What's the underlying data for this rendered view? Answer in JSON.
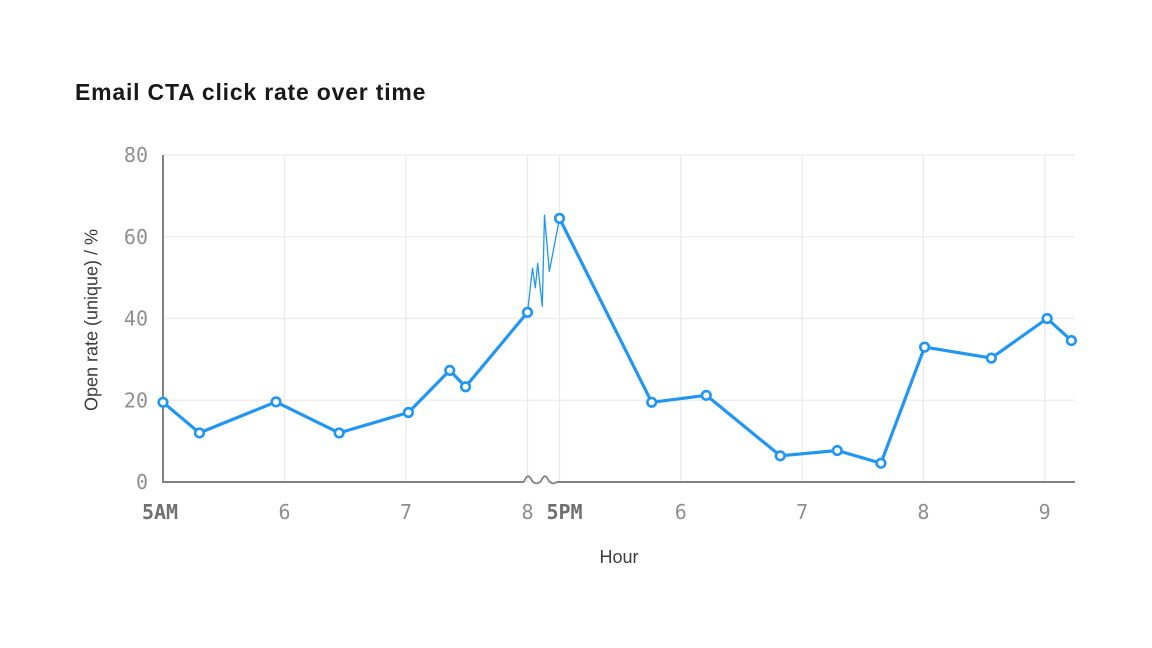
{
  "chart_data": {
    "type": "line",
    "title": "Email CTA click rate over time",
    "xlabel": "Hour",
    "ylabel": "Open rate (unique) / %",
    "ylim": [
      0,
      80
    ],
    "yticks": [
      0,
      20,
      40,
      60,
      80
    ],
    "grid": true,
    "legend": "none",
    "x_axis_break_between": [
      "8AM",
      "5PM"
    ],
    "x_ticks_am": [
      {
        "hour": 5,
        "label": "5AM",
        "bold": true
      },
      {
        "hour": 6,
        "label": "6",
        "bold": false
      },
      {
        "hour": 7,
        "label": "7",
        "bold": false
      },
      {
        "hour": 8,
        "label": "8",
        "bold": false
      }
    ],
    "x_ticks_pm": [
      {
        "hour": 17,
        "label": "5PM",
        "bold": true
      },
      {
        "hour": 18,
        "label": "6",
        "bold": false
      },
      {
        "hour": 19,
        "label": "7",
        "bold": false
      },
      {
        "hour": 20,
        "label": "8",
        "bold": false
      },
      {
        "hour": 21,
        "label": "9",
        "bold": false
      }
    ],
    "series": [
      {
        "name": "Open rate (unique) / %",
        "am_points": [
          [
            5.0,
            19.5
          ],
          [
            5.3,
            12.0
          ],
          [
            5.93,
            19.6
          ],
          [
            6.45,
            12.0
          ],
          [
            7.02,
            17.0
          ],
          [
            7.36,
            27.3
          ],
          [
            7.49,
            23.3
          ],
          [
            8.0,
            41.5
          ]
        ],
        "break_points": [
          [
            0.156,
            52.3
          ],
          [
            0.244,
            47.5
          ],
          [
            0.319,
            53.5
          ],
          [
            0.391,
            48.0
          ],
          [
            0.463,
            43.0
          ],
          [
            0.531,
            65.3
          ],
          [
            0.681,
            51.5
          ]
        ],
        "pm_points": [
          [
            17.0,
            64.5
          ],
          [
            17.76,
            19.5
          ],
          [
            18.21,
            21.2
          ],
          [
            18.82,
            6.4
          ],
          [
            19.29,
            7.7
          ],
          [
            19.65,
            4.6
          ],
          [
            20.01,
            33.0
          ],
          [
            20.56,
            30.3
          ],
          [
            21.02,
            40.0
          ],
          [
            21.22,
            34.6
          ]
        ]
      }
    ],
    "colors": {
      "line": "#2196F3",
      "marker_fill": "#ffffff",
      "axis": "#828282",
      "grid": "#ebebeb",
      "tick": "#8f8f8f",
      "tick_bold": "#707070",
      "title": "#191919",
      "axis_label": "#3d3d3d"
    }
  }
}
